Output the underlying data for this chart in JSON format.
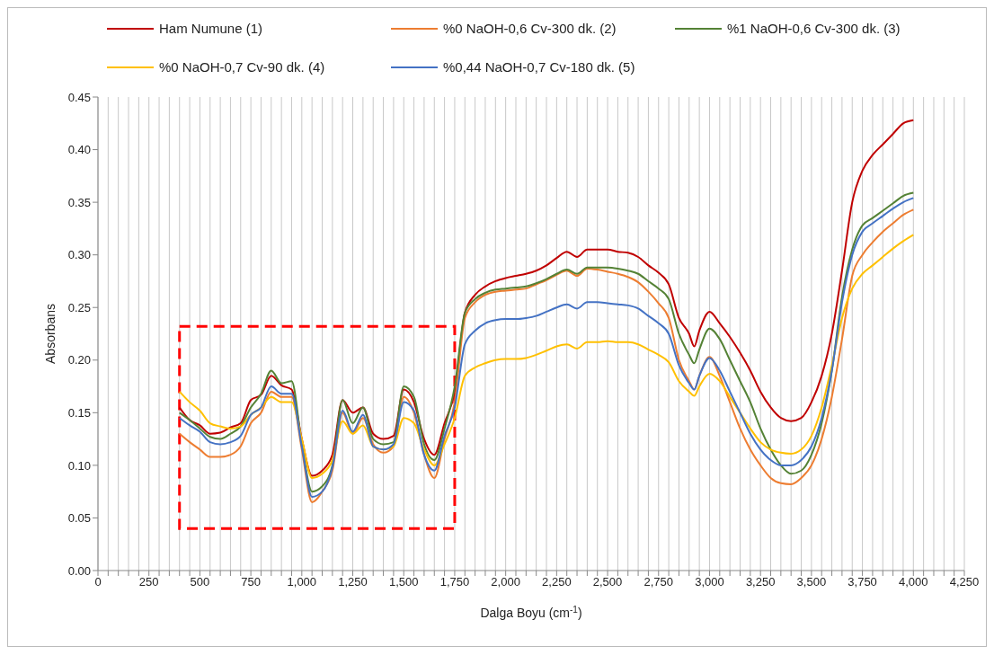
{
  "chart_data": {
    "type": "line",
    "xlabel": "Dalga Boyu (cm$^{-1}$)",
    "ylabel": "Absorbans",
    "legend": "top",
    "grid": "x",
    "marker": "none",
    "line_style": "solid",
    "x": [
      400,
      450,
      500,
      550,
      600,
      650,
      700,
      750,
      800,
      850,
      900,
      950,
      1000,
      1050,
      1100,
      1150,
      1200,
      1250,
      1300,
      1350,
      1400,
      1450,
      1500,
      1550,
      1600,
      1650,
      1700,
      1750,
      1800,
      1850,
      1900,
      1950,
      2000,
      2050,
      2100,
      2150,
      2200,
      2250,
      2300,
      2350,
      2400,
      2450,
      2500,
      2550,
      2600,
      2650,
      2700,
      2750,
      2800,
      2850,
      2900,
      2925,
      2950,
      3000,
      3050,
      3100,
      3150,
      3200,
      3250,
      3300,
      3350,
      3400,
      3450,
      3500,
      3550,
      3600,
      3650,
      3700,
      3750,
      3800,
      3850,
      3900,
      3950,
      4000
    ],
    "xlim": [
      0,
      4250
    ],
    "xticks": [
      0,
      {
        "value": 50,
        "label": null
      },
      {
        "value": 100,
        "label": null
      },
      {
        "value": 150,
        "label": null
      },
      {
        "value": 200,
        "label": null
      },
      250,
      {
        "value": 300,
        "label": null
      },
      {
        "value": 350,
        "label": null
      },
      {
        "value": 400,
        "label": null
      },
      {
        "value": 450,
        "label": null
      },
      500,
      {
        "value": 550,
        "label": null
      },
      {
        "value": 600,
        "label": null
      },
      {
        "value": 650,
        "label": null
      },
      {
        "value": 700,
        "label": null
      },
      750,
      {
        "value": 800,
        "label": null
      },
      {
        "value": 850,
        "label": null
      },
      {
        "value": 900,
        "label": null
      },
      {
        "value": 950,
        "label": null
      },
      {
        "value": 1000,
        "label": "1,000"
      },
      {
        "value": 1050,
        "label": null
      },
      {
        "value": 1100,
        "label": null
      },
      {
        "value": 1150,
        "label": null
      },
      {
        "value": 1200,
        "label": null
      },
      {
        "value": 1250,
        "label": "1,250"
      },
      {
        "value": 1300,
        "label": null
      },
      {
        "value": 1350,
        "label": null
      },
      {
        "value": 1400,
        "label": null
      },
      {
        "value": 1450,
        "label": null
      },
      {
        "value": 1500,
        "label": "1,500"
      },
      {
        "value": 1550,
        "label": null
      },
      {
        "value": 1600,
        "label": null
      },
      {
        "value": 1650,
        "label": null
      },
      {
        "value": 1700,
        "label": null
      },
      {
        "value": 1750,
        "label": "1,750"
      },
      {
        "value": 1800,
        "label": null
      },
      {
        "value": 1850,
        "label": null
      },
      {
        "value": 1900,
        "label": null
      },
      {
        "value": 1950,
        "label": null
      },
      {
        "value": 2000,
        "label": "2,000"
      },
      {
        "value": 2050,
        "label": null
      },
      {
        "value": 2100,
        "label": null
      },
      {
        "value": 2150,
        "label": null
      },
      {
        "value": 2200,
        "label": null
      },
      {
        "value": 2250,
        "label": "2,250"
      },
      {
        "value": 2300,
        "label": null
      },
      {
        "value": 2350,
        "label": null
      },
      {
        "value": 2400,
        "label": null
      },
      {
        "value": 2450,
        "label": null
      },
      {
        "value": 2500,
        "label": "2,500"
      },
      {
        "value": 2550,
        "label": null
      },
      {
        "value": 2600,
        "label": null
      },
      {
        "value": 2650,
        "label": null
      },
      {
        "value": 2700,
        "label": null
      },
      {
        "value": 2750,
        "label": "2,750"
      },
      {
        "value": 2800,
        "label": null
      },
      {
        "value": 2850,
        "label": null
      },
      {
        "value": 2900,
        "label": null
      },
      {
        "value": 2950,
        "label": null
      },
      {
        "value": 3000,
        "label": "3,000"
      },
      {
        "value": 3050,
        "label": null
      },
      {
        "value": 3100,
        "label": null
      },
      {
        "value": 3150,
        "label": null
      },
      {
        "value": 3200,
        "label": null
      },
      {
        "value": 3250,
        "label": "3,250"
      },
      {
        "value": 3300,
        "label": null
      },
      {
        "value": 3350,
        "label": null
      },
      {
        "value": 3400,
        "label": null
      },
      {
        "value": 3450,
        "label": null
      },
      {
        "value": 3500,
        "label": "3,500"
      },
      {
        "value": 3550,
        "label": null
      },
      {
        "value": 3600,
        "label": null
      },
      {
        "value": 3650,
        "label": null
      },
      {
        "value": 3700,
        "label": null
      },
      {
        "value": 3750,
        "label": "3,750"
      },
      {
        "value": 3800,
        "label": null
      },
      {
        "value": 3850,
        "label": null
      },
      {
        "value": 3900,
        "label": null
      },
      {
        "value": 3950,
        "label": null
      },
      {
        "value": 4000,
        "label": "4,000"
      },
      {
        "value": 4050,
        "label": null
      },
      {
        "value": 4100,
        "label": null
      },
      {
        "value": 4150,
        "label": null
      },
      {
        "value": 4200,
        "label": null
      },
      {
        "value": 4250,
        "label": "4,250"
      }
    ],
    "ylim": [
      0,
      0.45
    ],
    "yticks": [
      {
        "value": 0,
        "label": "0.00"
      },
      {
        "value": 0.05,
        "label": "0.05"
      },
      {
        "value": 0.1,
        "label": "0.10"
      },
      {
        "value": 0.15,
        "label": "0.15"
      },
      {
        "value": 0.2,
        "label": "0.20"
      },
      {
        "value": 0.25,
        "label": "0.25"
      },
      {
        "value": 0.3,
        "label": "0.30"
      },
      {
        "value": 0.35,
        "label": "0.35"
      },
      {
        "value": 0.4,
        "label": "0.40"
      },
      {
        "value": 0.45,
        "label": "0.45"
      }
    ],
    "series": [
      {
        "name": "Ham Numune (1)",
        "color": "#c00000",
        "values": [
          0.155,
          0.143,
          0.138,
          0.13,
          0.131,
          0.136,
          0.14,
          0.162,
          0.167,
          0.185,
          0.176,
          0.172,
          0.125,
          0.09,
          0.095,
          0.11,
          0.162,
          0.15,
          0.155,
          0.13,
          0.125,
          0.128,
          0.172,
          0.16,
          0.125,
          0.11,
          0.14,
          0.17,
          0.245,
          0.262,
          0.27,
          0.275,
          0.278,
          0.28,
          0.282,
          0.285,
          0.29,
          0.297,
          0.303,
          0.298,
          0.305,
          0.305,
          0.305,
          0.303,
          0.302,
          0.298,
          0.29,
          0.283,
          0.272,
          0.24,
          0.225,
          0.213,
          0.228,
          0.246,
          0.235,
          0.222,
          0.207,
          0.19,
          0.17,
          0.155,
          0.145,
          0.142,
          0.145,
          0.16,
          0.185,
          0.225,
          0.285,
          0.35,
          0.38,
          0.395,
          0.405,
          0.415,
          0.425,
          0.428
        ]
      },
      {
        "name": "%0 NaOH-0,6 Cv-300 dk. (2)",
        "color": "#ed7d31",
        "values": [
          0.13,
          0.122,
          0.115,
          0.108,
          0.108,
          0.11,
          0.118,
          0.14,
          0.15,
          0.17,
          0.165,
          0.165,
          0.115,
          0.065,
          0.075,
          0.095,
          0.15,
          0.13,
          0.145,
          0.12,
          0.112,
          0.118,
          0.165,
          0.15,
          0.11,
          0.088,
          0.125,
          0.16,
          0.24,
          0.255,
          0.262,
          0.265,
          0.266,
          0.267,
          0.268,
          0.272,
          0.276,
          0.281,
          0.285,
          0.28,
          0.287,
          0.286,
          0.284,
          0.282,
          0.279,
          0.274,
          0.265,
          0.254,
          0.24,
          0.2,
          0.18,
          0.172,
          0.185,
          0.203,
          0.185,
          0.16,
          0.135,
          0.115,
          0.1,
          0.088,
          0.083,
          0.082,
          0.088,
          0.1,
          0.125,
          0.165,
          0.22,
          0.28,
          0.3,
          0.312,
          0.322,
          0.33,
          0.338,
          0.343
        ]
      },
      {
        "name": "%1 NaOH-0,6 Cv-300 dk. (3)",
        "color": "#548235",
        "values": [
          0.15,
          0.143,
          0.135,
          0.127,
          0.125,
          0.13,
          0.137,
          0.155,
          0.168,
          0.19,
          0.178,
          0.18,
          0.12,
          0.075,
          0.08,
          0.1,
          0.162,
          0.14,
          0.155,
          0.125,
          0.12,
          0.122,
          0.175,
          0.165,
          0.12,
          0.105,
          0.135,
          0.175,
          0.245,
          0.258,
          0.264,
          0.267,
          0.268,
          0.269,
          0.27,
          0.273,
          0.277,
          0.282,
          0.286,
          0.282,
          0.288,
          0.288,
          0.288,
          0.287,
          0.285,
          0.282,
          0.275,
          0.268,
          0.258,
          0.225,
          0.205,
          0.197,
          0.21,
          0.23,
          0.22,
          0.2,
          0.18,
          0.16,
          0.135,
          0.115,
          0.1,
          0.092,
          0.095,
          0.11,
          0.14,
          0.19,
          0.26,
          0.305,
          0.328,
          0.335,
          0.342,
          0.349,
          0.356,
          0.359
        ]
      },
      {
        "name": "%0 NaOH-0,7 Cv-90 dk. (4)",
        "color": "#ffc000",
        "values": [
          0.17,
          0.16,
          0.152,
          0.14,
          0.137,
          0.135,
          0.137,
          0.148,
          0.155,
          0.165,
          0.16,
          0.16,
          0.125,
          0.088,
          0.092,
          0.105,
          0.142,
          0.13,
          0.138,
          0.118,
          0.115,
          0.118,
          0.145,
          0.14,
          0.115,
          0.1,
          0.12,
          0.145,
          0.185,
          0.193,
          0.197,
          0.2,
          0.201,
          0.201,
          0.202,
          0.205,
          0.209,
          0.213,
          0.215,
          0.211,
          0.217,
          0.217,
          0.218,
          0.217,
          0.217,
          0.215,
          0.21,
          0.205,
          0.198,
          0.18,
          0.17,
          0.166,
          0.175,
          0.187,
          0.18,
          0.165,
          0.15,
          0.135,
          0.122,
          0.115,
          0.112,
          0.111,
          0.115,
          0.128,
          0.155,
          0.195,
          0.24,
          0.268,
          0.282,
          0.29,
          0.298,
          0.306,
          0.313,
          0.319
        ]
      },
      {
        "name": "%0,44 NaOH-0,7 Cv-180 dk. (5)",
        "color": "#4472c4",
        "values": [
          0.145,
          0.138,
          0.132,
          0.122,
          0.12,
          0.122,
          0.128,
          0.148,
          0.155,
          0.175,
          0.168,
          0.168,
          0.118,
          0.07,
          0.075,
          0.098,
          0.152,
          0.132,
          0.148,
          0.118,
          0.115,
          0.12,
          0.16,
          0.152,
          0.11,
          0.095,
          0.128,
          0.155,
          0.215,
          0.228,
          0.235,
          0.238,
          0.239,
          0.239,
          0.24,
          0.242,
          0.246,
          0.25,
          0.253,
          0.249,
          0.255,
          0.255,
          0.254,
          0.253,
          0.252,
          0.249,
          0.242,
          0.235,
          0.225,
          0.195,
          0.178,
          0.172,
          0.185,
          0.202,
          0.19,
          0.17,
          0.15,
          0.13,
          0.115,
          0.105,
          0.1,
          0.1,
          0.105,
          0.118,
          0.145,
          0.19,
          0.255,
          0.3,
          0.322,
          0.33,
          0.337,
          0.344,
          0.35,
          0.354
        ]
      }
    ]
  }
}
